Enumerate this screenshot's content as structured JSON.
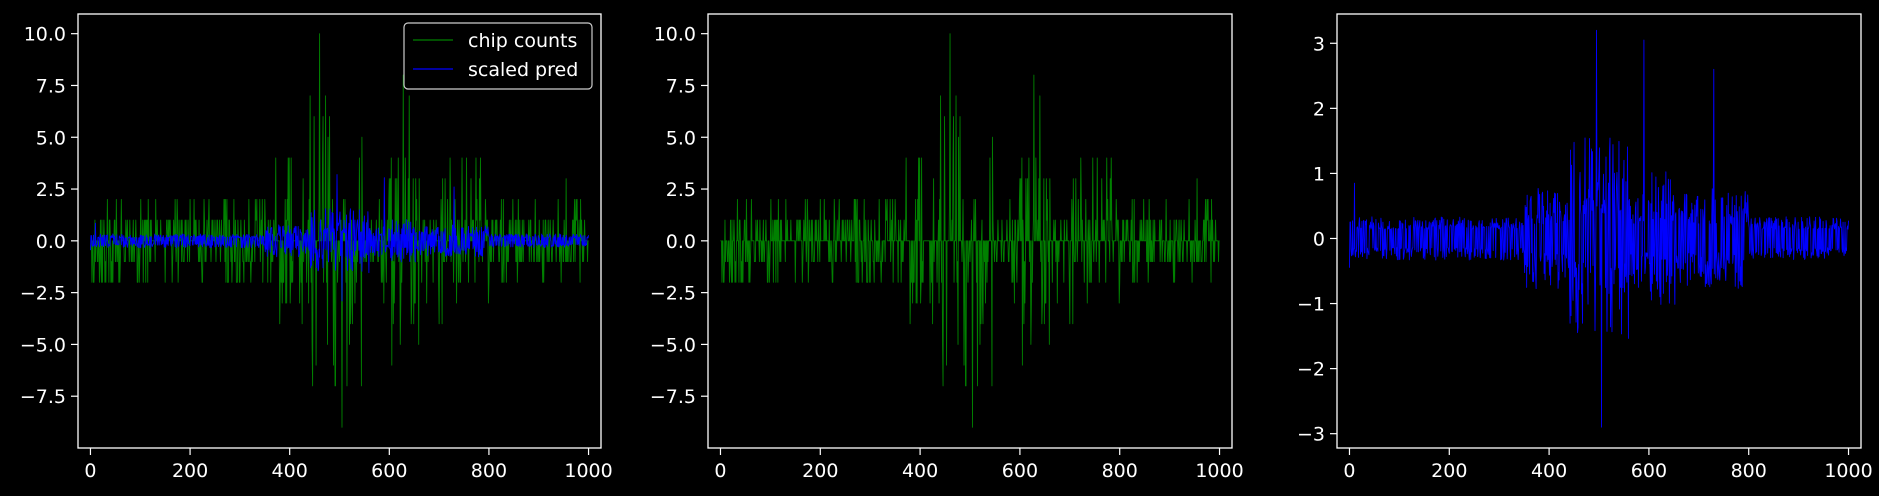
{
  "figure": {
    "background": "#000000",
    "foreground": "#ffffff"
  },
  "chart_data": [
    {
      "type": "line",
      "xlim": [
        -25,
        1025
      ],
      "ylim": [
        -10,
        10.95
      ],
      "xticks": [
        0,
        200,
        400,
        600,
        800,
        1000
      ],
      "xtick_labels": [
        "0",
        "200",
        "400",
        "600",
        "800",
        "1000"
      ],
      "yticks": [
        -7.5,
        -5.0,
        -2.5,
        0.0,
        2.5,
        5.0,
        7.5,
        10.0
      ],
      "ytick_labels": [
        "−7.5",
        "−5.0",
        "−2.5",
        "0.0",
        "2.5",
        "5.0",
        "7.5",
        "10.0"
      ],
      "legend": {
        "position": "top-right",
        "entries": [
          "chip counts",
          "scaled pred"
        ]
      },
      "series": [
        {
          "name": "chip counts",
          "color": "#008000",
          "kind": "signed integer counts, x = 0..1000 step 1",
          "x_range": [
            0,
            1000
          ],
          "y_range": [
            -9,
            10
          ],
          "peaks": [
            {
              "x": 460,
              "y": 10
            },
            {
              "x": 505,
              "y": -9
            },
            {
              "x": 628,
              "y": 8
            },
            {
              "x": 640,
              "y": 7
            },
            {
              "x": 472,
              "y": 7
            },
            {
              "x": 492,
              "y": -7
            },
            {
              "x": 515,
              "y": -7
            },
            {
              "x": 480,
              "y": 6
            },
            {
              "x": 488,
              "y": -6
            },
            {
              "x": 605,
              "y": -6
            },
            {
              "x": 955,
              "y": 3
            },
            {
              "x": 910,
              "y": -2
            }
          ]
        },
        {
          "name": "scaled pred",
          "color": "#0000ff",
          "kind": "scaled prediction, x = 0..1000 step 1",
          "x_range": [
            0,
            1000
          ],
          "y_range": [
            -2.9,
            3.2
          ]
        }
      ]
    },
    {
      "type": "line",
      "xlim": [
        -25,
        1025
      ],
      "ylim": [
        -10,
        10.95
      ],
      "xticks": [
        0,
        200,
        400,
        600,
        800,
        1000
      ],
      "xtick_labels": [
        "0",
        "200",
        "400",
        "600",
        "800",
        "1000"
      ],
      "yticks": [
        -7.5,
        -5.0,
        -2.5,
        0.0,
        2.5,
        5.0,
        7.5,
        10.0
      ],
      "ytick_labels": [
        "−7.5",
        "−5.0",
        "−2.5",
        "0.0",
        "2.5",
        "5.0",
        "7.5",
        "10.0"
      ],
      "series": [
        {
          "color": "#008000",
          "kind": "signed integer counts, x = 0..1000 step 1",
          "x_range": [
            0,
            1000
          ],
          "y_range": [
            -9,
            10
          ]
        }
      ]
    },
    {
      "type": "line",
      "xlim": [
        -25,
        1025
      ],
      "ylim": [
        -3.22,
        3.45
      ],
      "xticks": [
        0,
        200,
        400,
        600,
        800,
        1000
      ],
      "xtick_labels": [
        "0",
        "200",
        "400",
        "600",
        "800",
        "1000"
      ],
      "yticks": [
        -3,
        -2,
        -1,
        0,
        1,
        2,
        3
      ],
      "ytick_labels": [
        "−3",
        "−2",
        "−1",
        "0",
        "1",
        "2",
        "3"
      ],
      "series": [
        {
          "color": "#0000ff",
          "kind": "scaled prediction, x = 0..1000 step 1",
          "x_range": [
            0,
            1000
          ],
          "y_range": [
            -2.9,
            3.2
          ],
          "peaks": [
            {
              "x": 495,
              "y": 3.2
            },
            {
              "x": 505,
              "y": -2.9
            },
            {
              "x": 590,
              "y": 3.05
            },
            {
              "x": 730,
              "y": 2.6
            },
            {
              "x": 10,
              "y": 0.85
            },
            {
              "x": 0,
              "y": -0.45
            }
          ]
        }
      ]
    }
  ]
}
